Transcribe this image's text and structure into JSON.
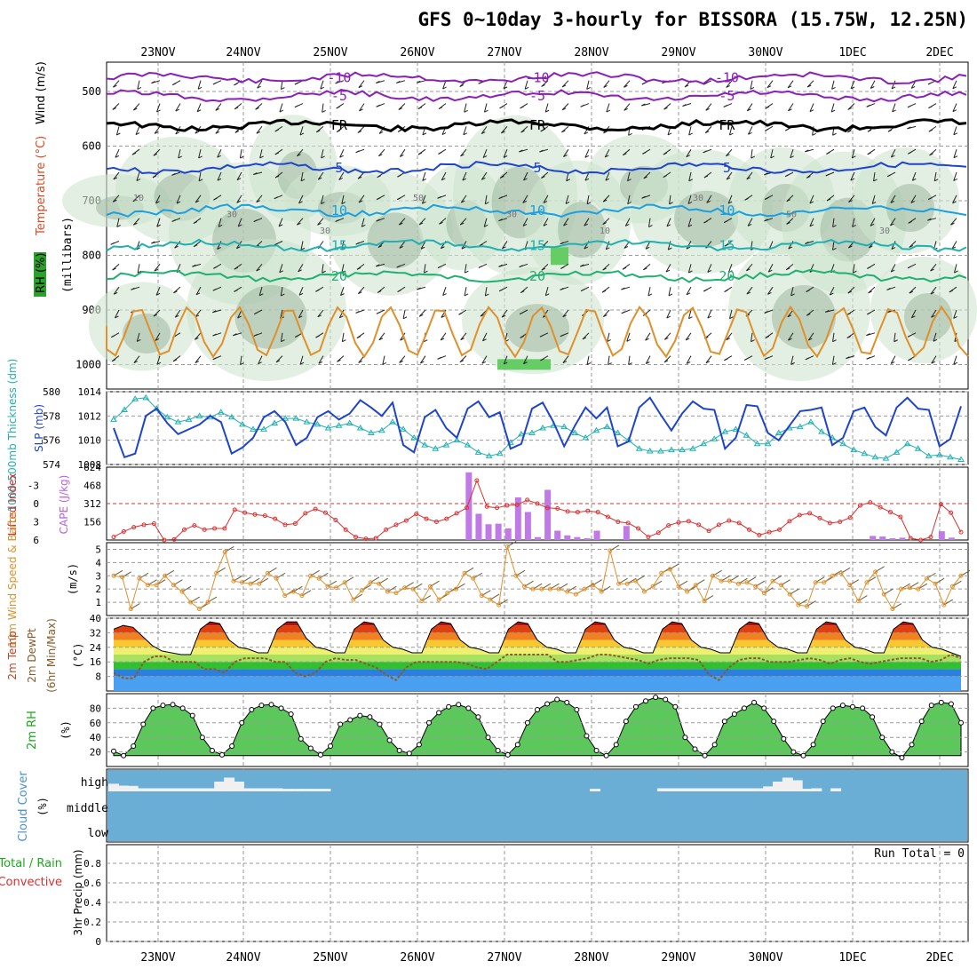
{
  "title": "GFS 0~10day 3-hourly for BISSORA (15.75W, 12.25N)",
  "dates": [
    "23NOV",
    "24NOV",
    "25NOV",
    "26NOV",
    "27NOV",
    "28NOV",
    "29NOV",
    "30NOV",
    "1DEC",
    "2DEC"
  ],
  "colors": {
    "grid": "#9a9a9a",
    "purple": "#8a1fb8",
    "blue": "#1f44cc",
    "lightblue": "#1aa0e0",
    "teal": "#20b0b0",
    "green": "#20b070",
    "orange": "#e0902a",
    "red": "#d83030",
    "cape": "#c07ae8",
    "cloud": "#6aaed6",
    "rh": "#1ca81c"
  },
  "chart_data": [
    {
      "id": "upper_air",
      "type": "contour",
      "ylabel_segments": [
        "RH (%)",
        "Temperature (°C)",
        "Wind (m/s)"
      ],
      "axis_label": "(millibars)",
      "yticks": [
        "500",
        "600",
        "700",
        "800",
        "900",
        "1000"
      ],
      "isotherms": [
        {
          "label": "-10",
          "pressure": 475
        },
        {
          "label": "-5",
          "pressure": 508
        },
        {
          "label": "FR",
          "pressure": 562
        },
        {
          "label": "5",
          "pressure": 640
        },
        {
          "label": "10",
          "pressure": 718
        },
        {
          "label": "15",
          "pressure": 782
        },
        {
          "label": "20",
          "pressure": 838
        }
      ],
      "rh_labels": [
        "10",
        "30",
        "30",
        "50",
        "30",
        "10",
        "30",
        "50",
        "30"
      ]
    },
    {
      "id": "thickness_slp",
      "type": "line",
      "ylabel_left": "1000-500mb Thickness (dm)",
      "ylabel_right": "SLP (mb)",
      "yticks_left": [
        "580",
        "578",
        "576",
        "574"
      ],
      "yticks_right": [
        "1014",
        "1012",
        "1010",
        "1008"
      ],
      "ylim_left": [
        574,
        580
      ],
      "ylim_right": [
        1008,
        1014
      ],
      "series": [
        {
          "name": "Thickness",
          "values": [
            577.7,
            578.5,
            579.4,
            579.5,
            578.6,
            577.9,
            577.5,
            577.7,
            578.0,
            577.9,
            578.3,
            577.9,
            577.3,
            576.9,
            576.9,
            577.4,
            577.8,
            577.8,
            577.5,
            577.3,
            577.0,
            577.2,
            577.4,
            577.0,
            576.6,
            576.8,
            577.5,
            576.9,
            576.2,
            575.6,
            575.3,
            575.6,
            576.0,
            575.6,
            575.0,
            574.7,
            574.9,
            575.8,
            576.5,
            576.6,
            577.0,
            577.2,
            577.1,
            576.6,
            576.2,
            576.8,
            577.1,
            576.6,
            576.0,
            575.3,
            575.1,
            575.1,
            575.2,
            575.2,
            575.3,
            575.7,
            576.1,
            576.7,
            576.9,
            576.4,
            575.7,
            575.7,
            576.6,
            577.0,
            577.1,
            577.5,
            576.7,
            576.2,
            575.7,
            575.2,
            574.9,
            574.6,
            574.5,
            575.0,
            575.7,
            575.3,
            574.7,
            574.8,
            574.6,
            574.4
          ]
        },
        {
          "name": "SLP",
          "values": [
            1011.0,
            1008.6,
            1008.9,
            1012.0,
            1012.6,
            1011.4,
            1010.5,
            1010.9,
            1011.3,
            1012.0,
            1011.5,
            1008.9,
            1009.4,
            1010.2,
            1011.9,
            1012.4,
            1011.5,
            1009.6,
            1010.2,
            1011.9,
            1012.4,
            1011.7,
            1012.2,
            1013.3,
            1012.7,
            1012.0,
            1013.1,
            1009.6,
            1009.0,
            1011.9,
            1012.5,
            1011.0,
            1010.2,
            1012.6,
            1013.2,
            1011.9,
            1012.3,
            1009.3,
            1009.7,
            1012.6,
            1013.1,
            1011.5,
            1009.5,
            1011.2,
            1012.7,
            1011.8,
            1012.7,
            1009.5,
            1009.9,
            1012.7,
            1013.5,
            1012.1,
            1010.8,
            1012.2,
            1013.2,
            1012.6,
            1012.5,
            1009.3,
            1010.2,
            1012.9,
            1012.8,
            1010.6,
            1010.0,
            1011.2,
            1012.4,
            1012.5,
            1012.7,
            1009.6,
            1010.2,
            1012.4,
            1012.7,
            1011.1,
            1010.4,
            1012.7,
            1013.5,
            1012.6,
            1012.5,
            1009.5,
            1010.1,
            1012.8
          ]
        }
      ]
    },
    {
      "id": "cape_li",
      "type": "bar+line",
      "ylabel_left": "Lifted Index",
      "ylabel_right": "CAPE (J/kg)",
      "yticks_left": [
        "-3",
        "0",
        "3",
        "6"
      ],
      "yticks_right": [
        "624",
        "468",
        "312",
        "156"
      ],
      "ylim_left": [
        6,
        -6
      ],
      "ylim_right": [
        0,
        624
      ],
      "series": [
        {
          "name": "Lifted Index",
          "values": [
            5.5,
            4.6,
            3.9,
            3.5,
            3.3,
            6,
            5.9,
            4.3,
            3.6,
            4.3,
            4.1,
            4.1,
            1,
            1.5,
            1.8,
            2.0,
            2.5,
            3.5,
            3.3,
            1.6,
            0.9,
            1.5,
            2.7,
            4.3,
            5.5,
            5.8,
            5.7,
            4.3,
            3.5,
            2.8,
            1.7,
            2.5,
            3.0,
            2.5,
            1.6,
            0.7,
            -3.8,
            0.5,
            0.7,
            0.3,
            0.2,
            -0.6,
            0.0,
            0.7,
            0.8,
            1.3,
            1.4,
            1.2,
            1.4,
            2.2,
            3.0,
            3.2,
            4.1,
            5.5,
            4.8,
            3.6,
            3.1,
            2.9,
            3.5,
            4.5,
            3.5,
            2.8,
            3.2,
            4.3,
            5.2,
            4.7,
            4.3,
            2.9,
            1.9,
            1.6,
            2.4,
            3.2,
            3.0,
            2.3,
            0.3,
            -0.2,
            0.6,
            1.4,
            2.2,
            5.7,
            6,
            5.5,
            0.1,
            1.5,
            4.7
          ]
        },
        {
          "name": "CAPE",
          "values": [
            0,
            0,
            0,
            0,
            0,
            0,
            0,
            0,
            0,
            0,
            0,
            0,
            0,
            0,
            0,
            0,
            0,
            0,
            0,
            0,
            0,
            0,
            0,
            0,
            0,
            0,
            0,
            0,
            0,
            0,
            0,
            0,
            0,
            0,
            0,
            0,
            580,
            225,
            135,
            140,
            100,
            365,
            240,
            25,
            430,
            80,
            40,
            25,
            15,
            80,
            0,
            0,
            120,
            0,
            0,
            0,
            0,
            0,
            0,
            0,
            0,
            0,
            0,
            0,
            0,
            0,
            0,
            0,
            0,
            0,
            0,
            0,
            0,
            0,
            0,
            0,
            0,
            35,
            30,
            15,
            20,
            0,
            0,
            0,
            75,
            20,
            0
          ]
        }
      ]
    },
    {
      "id": "wind10m",
      "type": "line",
      "ylabel": "10m Wind Speed & Barbs",
      "unit": "(m/s)",
      "yticks": [
        "5",
        "4",
        "3",
        "2",
        "1"
      ],
      "ylim": [
        0,
        5.5
      ],
      "series": [
        {
          "name": "10m wind",
          "values": [
            3.0,
            2.9,
            0.5,
            2.8,
            2.3,
            2.3,
            3.0,
            2.3,
            1.8,
            1.0,
            0.5,
            1.0,
            3.2,
            4.8,
            2.6,
            2.5,
            2.4,
            2.4,
            3.2,
            2.8,
            1.5,
            1.8,
            1.5,
            3.0,
            2.8,
            2.2,
            2.1,
            2.5,
            1.2,
            1.9,
            2.5,
            2.4,
            1.8,
            1.7,
            2.1,
            2.0,
            1.1,
            2.2,
            1.2,
            1.7,
            2.0,
            3.2,
            2.8,
            1.5,
            1.2,
            0.8,
            5.2,
            3.0,
            2.2,
            2.0,
            2.0,
            2.0,
            2.0,
            1.8,
            1.6,
            2.0,
            2.3,
            1.8,
            4.9,
            2.4,
            2.4,
            2.6,
            1.8,
            2.2,
            3.2,
            3.5,
            2.2,
            1.8,
            2.3,
            1.1,
            3.0,
            2.6,
            2.6,
            2.4,
            2.5,
            2.2,
            1.7,
            2.6,
            2.3,
            1.6,
            0.8,
            0.7,
            2.5,
            2.5,
            3.0,
            3.2,
            2.3,
            1.1,
            2.5,
            3.3,
            1.6,
            0.5,
            2.0,
            2.1,
            2.0,
            2.8,
            2.4,
            0.8,
            2.2,
            3.0
          ]
        }
      ]
    },
    {
      "id": "temp2m",
      "type": "area",
      "ylabel_segments": [
        "2m Temp",
        "2m DewPt",
        "(6hr Min/Max)"
      ],
      "unit": "(°C)",
      "yticks": [
        "40",
        "32",
        "24",
        "16",
        "8"
      ],
      "ylim": [
        0,
        40
      ],
      "series": [
        {
          "name": "2m Temp",
          "values": [
            34,
            36,
            35,
            30,
            25,
            22,
            21,
            20,
            20,
            34,
            38,
            37,
            28,
            24,
            23,
            21,
            21,
            34,
            38,
            38,
            29,
            24,
            23,
            21,
            21,
            34,
            38,
            37,
            28,
            24,
            23,
            21,
            21,
            34,
            38,
            37,
            28,
            24,
            23,
            21,
            21,
            34,
            38,
            37,
            28,
            24,
            23,
            21,
            21,
            34,
            38,
            37,
            28,
            24,
            23,
            21,
            21,
            34,
            38,
            37,
            28,
            24,
            23,
            21,
            21,
            34,
            38,
            37,
            28,
            24,
            23,
            21,
            21,
            34,
            38,
            37,
            28,
            24,
            23,
            21,
            21,
            34,
            38,
            37,
            28,
            24,
            23,
            21,
            19
          ]
        },
        {
          "name": "2m DewPt",
          "values": [
            10,
            7,
            7,
            16,
            19,
            19,
            16,
            16,
            16,
            12,
            12,
            10,
            16,
            18,
            18,
            18,
            16,
            16,
            10,
            8,
            10,
            16,
            18,
            17,
            17,
            15,
            13,
            9,
            6,
            13,
            16,
            16,
            16,
            16,
            16,
            15,
            13,
            12,
            16,
            20,
            20,
            20,
            20,
            20,
            16,
            16,
            17,
            18,
            20,
            20,
            19,
            18,
            17,
            15,
            17,
            18,
            18,
            18,
            17,
            9,
            6,
            13,
            17,
            18,
            18,
            16,
            16,
            16,
            17,
            18,
            17,
            15,
            17,
            18,
            16,
            15,
            16,
            17,
            18,
            18,
            18,
            16,
            17,
            20,
            18
          ]
        }
      ]
    },
    {
      "id": "rh2m",
      "type": "area",
      "ylabel": "2m RH",
      "unit": "(%)",
      "yticks": [
        "80",
        "60",
        "40",
        "20"
      ],
      "ylim": [
        0,
        100
      ],
      "series": [
        {
          "name": "2m RH",
          "values": [
            21,
            15,
            28,
            58,
            80,
            84,
            85,
            80,
            70,
            40,
            22,
            16,
            28,
            60,
            78,
            84,
            85,
            80,
            72,
            38,
            25,
            16,
            28,
            58,
            64,
            70,
            68,
            58,
            36,
            22,
            18,
            30,
            60,
            74,
            82,
            85,
            80,
            68,
            40,
            22,
            16,
            30,
            60,
            78,
            86,
            92,
            88,
            78,
            42,
            22,
            15,
            30,
            62,
            82,
            90,
            95,
            92,
            82,
            40,
            24,
            15,
            30,
            62,
            72,
            80,
            88,
            80,
            62,
            38,
            20,
            15,
            30,
            62,
            80,
            84,
            82,
            80,
            68,
            40,
            20,
            12,
            30,
            62,
            84,
            88,
            86,
            60
          ]
        }
      ]
    },
    {
      "id": "cloud",
      "type": "bar",
      "ylabel": "Cloud Cover",
      "unit": "(%)",
      "yticks": [
        "high",
        "middle",
        "low"
      ],
      "ylim": [
        0,
        100
      ],
      "series": [
        {
          "name": "cloud",
          "values": [
            22,
            15,
            14,
            5,
            5,
            5,
            5,
            5,
            5,
            5,
            5,
            30,
            45,
            30,
            5,
            5,
            5,
            5,
            3,
            3,
            3,
            3,
            3,
            0,
            0,
            0,
            0,
            0,
            0,
            0,
            0,
            0,
            0,
            0,
            0,
            0,
            0,
            0,
            0,
            0,
            0,
            0,
            0,
            0,
            0,
            0,
            0,
            0,
            0,
            0,
            3,
            0,
            0,
            0,
            0,
            0,
            0,
            5,
            5,
            5,
            5,
            5,
            5,
            5,
            5,
            5,
            5,
            5,
            12,
            30,
            45,
            35,
            3,
            5,
            0,
            5,
            0,
            0,
            0,
            0,
            0,
            0,
            0,
            0,
            0,
            0,
            0,
            0,
            0
          ]
        }
      ]
    },
    {
      "id": "precip",
      "type": "bar",
      "ylabel_segments": [
        "Total / Rain",
        "Convective",
        "3hr Precip (mm)"
      ],
      "yticks": [
        "0.8",
        "0.6",
        "0.4",
        "0.2",
        "0"
      ],
      "ylim": [
        0,
        1
      ],
      "run_total": "Run Total = 0",
      "series": [
        {
          "name": "precip",
          "values": []
        }
      ]
    }
  ]
}
